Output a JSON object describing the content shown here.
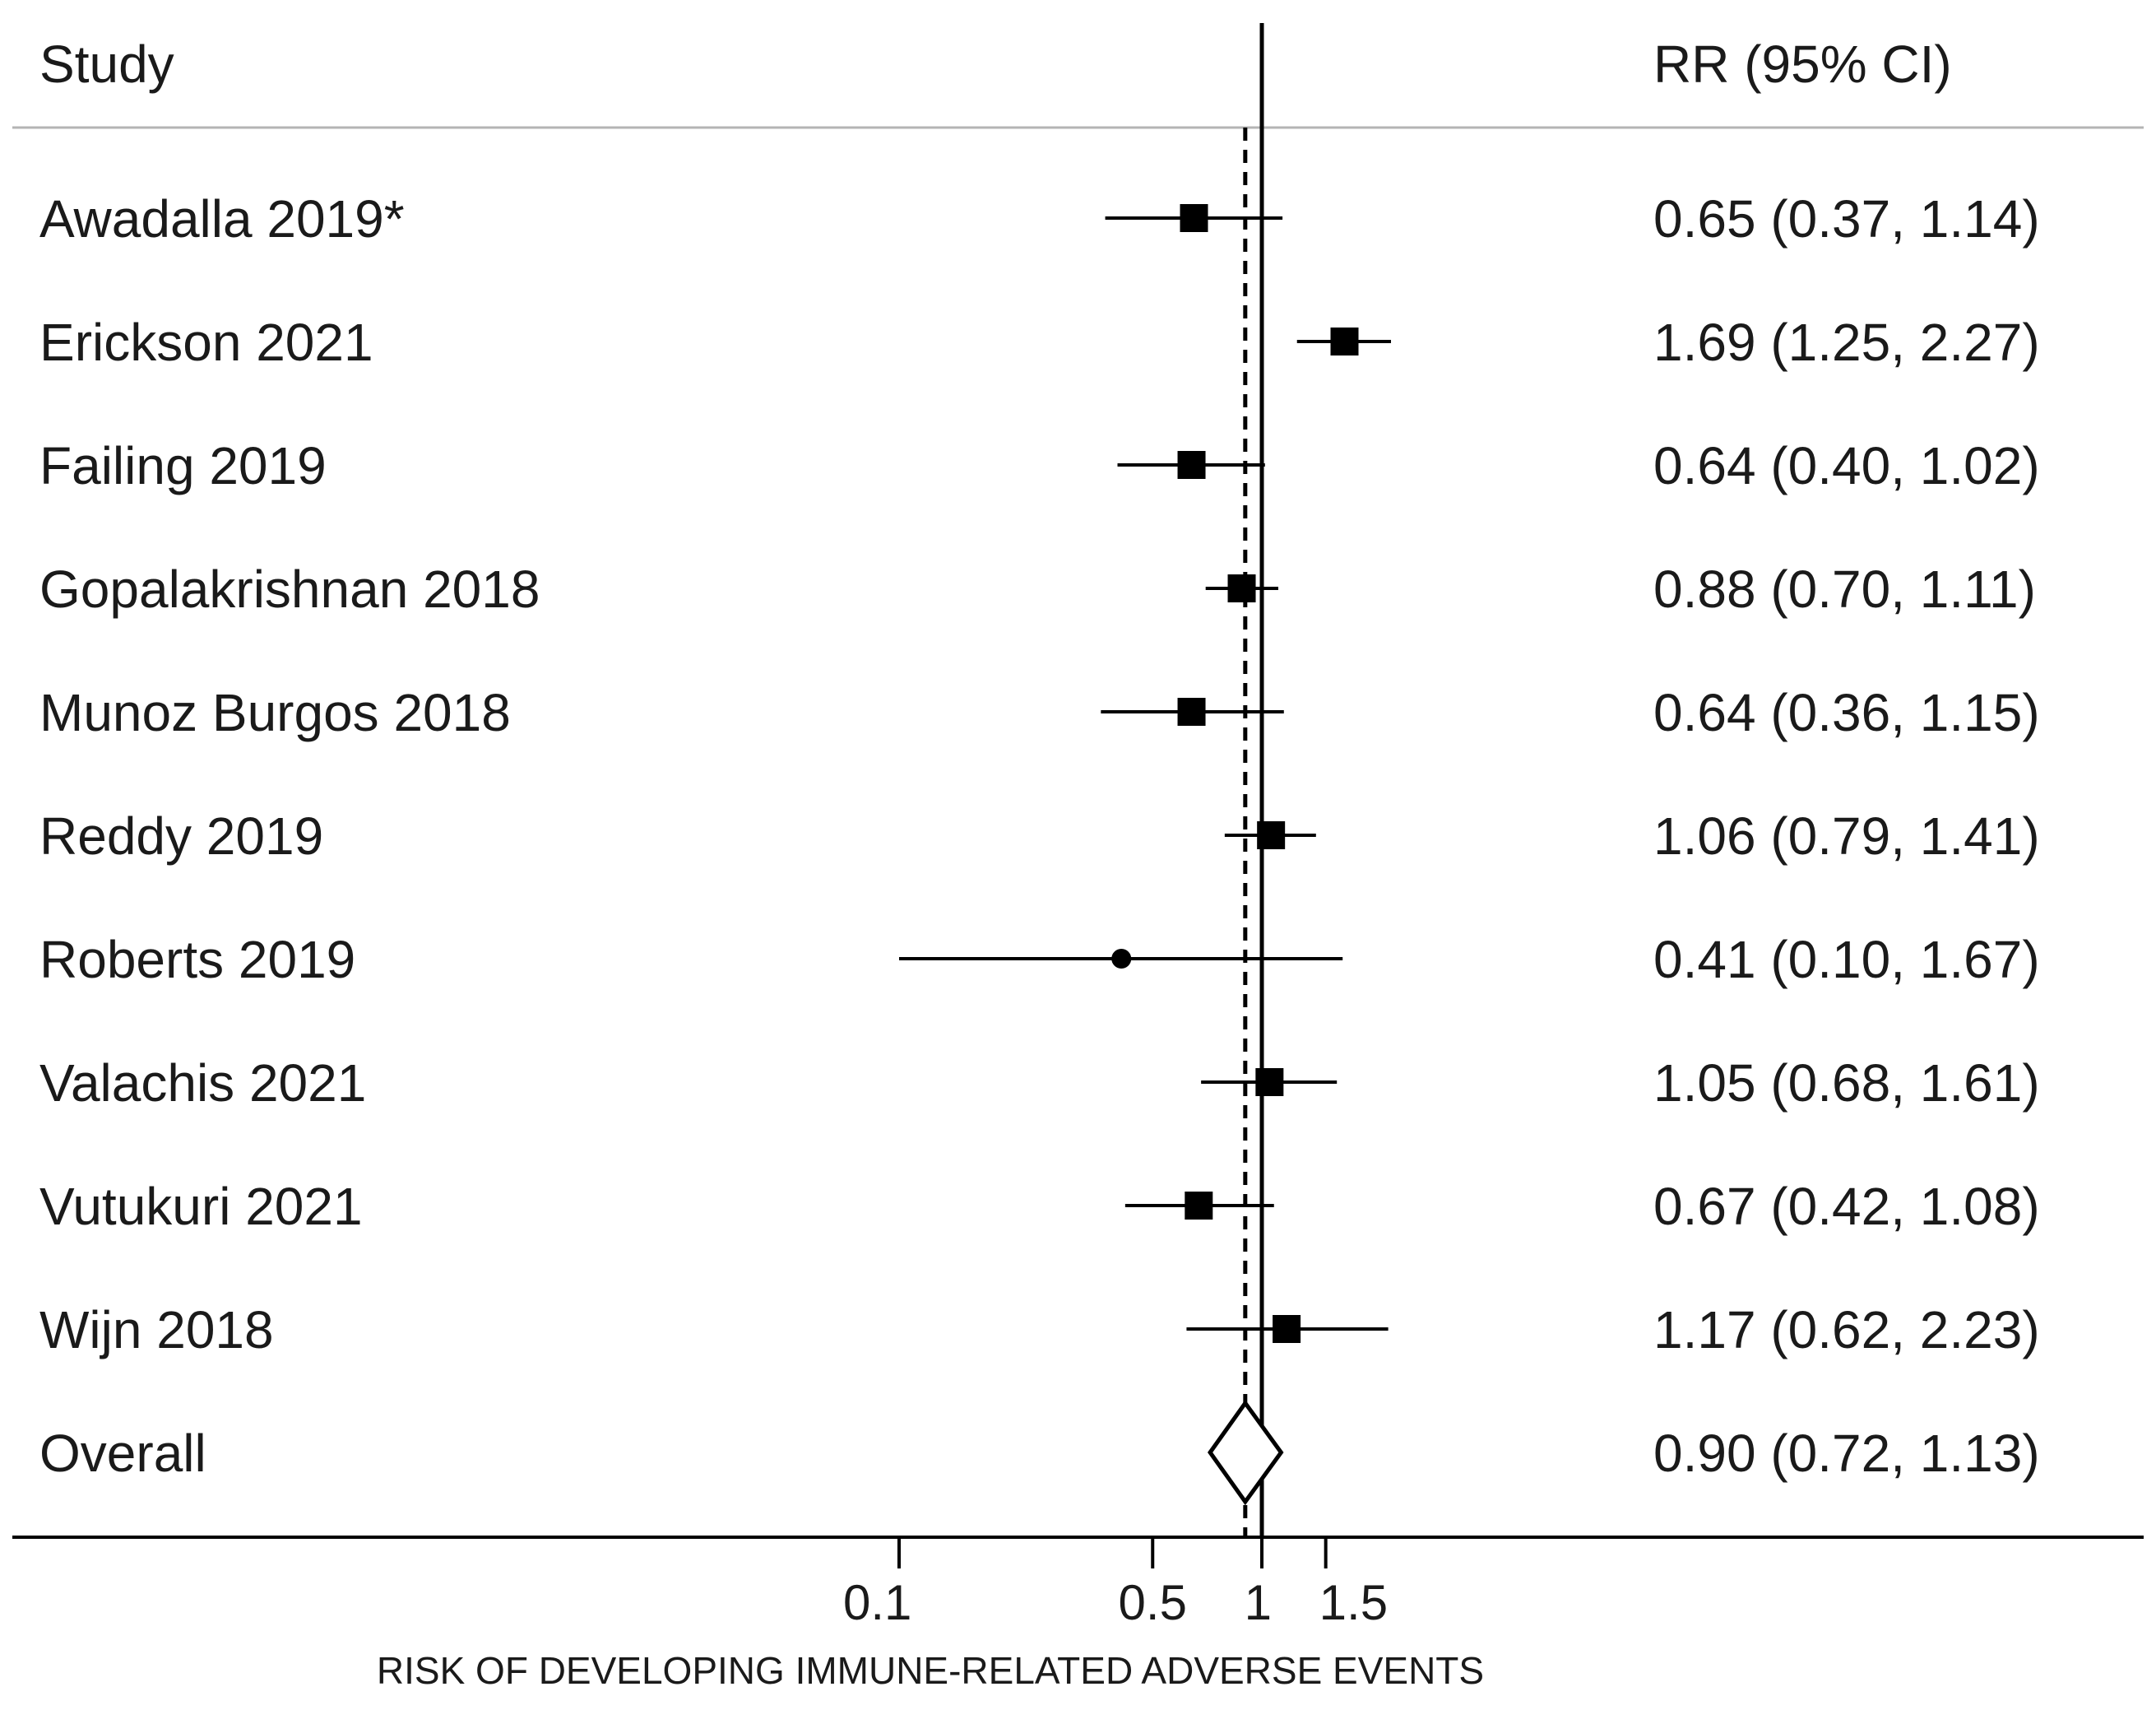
{
  "chart_data": {
    "type": "forest",
    "header": {
      "study": "Study",
      "estimate": "RR (95% CI)"
    },
    "xscale": "log",
    "xlim": [
      0.03,
      50
    ],
    "xticks": [
      0.1,
      0.5,
      1,
      1.5
    ],
    "xtick_labels": [
      "0.1",
      "0.5",
      "1",
      "1.5"
    ],
    "xlabel": "RISK OF DEVELOPING IMMUNE-RELATED ADVERSE EVENTS",
    "null_value": 1,
    "pooled_value": 0.9,
    "studies": [
      {
        "name": "Awadalla 2019*",
        "rr": 0.65,
        "lo": 0.37,
        "hi": 1.14,
        "text": "0.65 (0.37, 1.14)",
        "marker": "square"
      },
      {
        "name": "Erickson 2021",
        "rr": 1.69,
        "lo": 1.25,
        "hi": 2.27,
        "text": "1.69 (1.25, 2.27)",
        "marker": "square"
      },
      {
        "name": "Failing 2019",
        "rr": 0.64,
        "lo": 0.4,
        "hi": 1.02,
        "text": "0.64 (0.40, 1.02)",
        "marker": "square"
      },
      {
        "name": "Gopalakrishnan 2018",
        "rr": 0.88,
        "lo": 0.7,
        "hi": 1.11,
        "text": "0.88 (0.70, 1.11)",
        "marker": "square"
      },
      {
        "name": "Munoz Burgos 2018",
        "rr": 0.64,
        "lo": 0.36,
        "hi": 1.15,
        "text": "0.64 (0.36, 1.15)",
        "marker": "square"
      },
      {
        "name": "Reddy 2019",
        "rr": 1.06,
        "lo": 0.79,
        "hi": 1.41,
        "text": "1.06 (0.79, 1.41)",
        "marker": "square"
      },
      {
        "name": "Roberts 2019",
        "rr": 0.41,
        "lo": 0.1,
        "hi": 1.67,
        "text": "0.41 (0.10, 1.67)",
        "marker": "dot"
      },
      {
        "name": "Valachis 2021",
        "rr": 1.05,
        "lo": 0.68,
        "hi": 1.61,
        "text": "1.05 (0.68, 1.61)",
        "marker": "square"
      },
      {
        "name": "Vutukuri 2021",
        "rr": 0.67,
        "lo": 0.42,
        "hi": 1.08,
        "text": "0.67 (0.42, 1.08)",
        "marker": "square"
      },
      {
        "name": "Wijn 2018",
        "rr": 1.17,
        "lo": 0.62,
        "hi": 2.23,
        "text": "1.17 (0.62, 2.23)",
        "marker": "square"
      }
    ],
    "overall": {
      "name": "Overall",
      "rr": 0.9,
      "lo": 0.72,
      "hi": 1.13,
      "text": "0.90 (0.72, 1.13)"
    }
  }
}
